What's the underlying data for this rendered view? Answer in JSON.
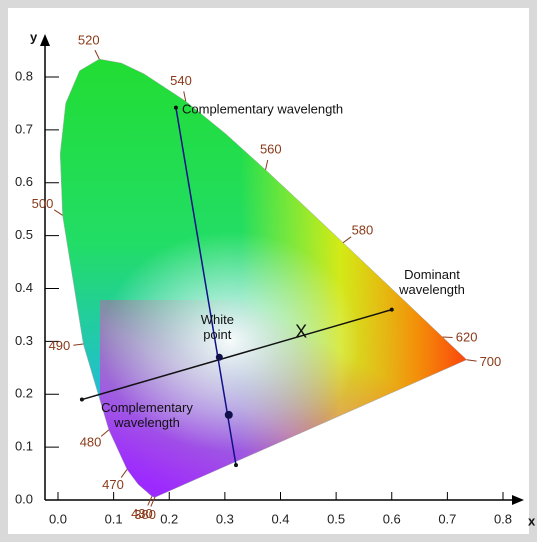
{
  "chart_data": {
    "type": "chromaticity",
    "x_label": "x",
    "y_label": "y",
    "xlim": [
      0,
      0.8
    ],
    "ylim": [
      0,
      0.8
    ],
    "xticks": [
      {
        "value": 0,
        "label": "0.0"
      },
      {
        "value": 0.1,
        "label": "0.1"
      },
      {
        "value": 0.2,
        "label": "0.2"
      },
      {
        "value": 0.3,
        "label": "0.3"
      },
      {
        "value": 0.4,
        "label": "0.4"
      },
      {
        "value": 0.5,
        "label": "0.5"
      },
      {
        "value": 0.6,
        "label": "0.6"
      },
      {
        "value": 0.7,
        "label": "0.7"
      },
      {
        "value": 0.8,
        "label": "0.8"
      }
    ],
    "yticks": [
      {
        "value": 0,
        "label": "0.0"
      },
      {
        "value": 0.1,
        "label": "0.1"
      },
      {
        "value": 0.2,
        "label": "0.2"
      },
      {
        "value": 0.3,
        "label": "0.3"
      },
      {
        "value": 0.4,
        "label": "0.4"
      },
      {
        "value": 0.5,
        "label": "0.5"
      },
      {
        "value": 0.6,
        "label": "0.6"
      },
      {
        "value": 0.7,
        "label": "0.7"
      },
      {
        "value": 0.8,
        "label": "0.8"
      }
    ],
    "locus": {
      "labels": [
        "380",
        "430",
        null,
        "470",
        "480",
        "490",
        "500",
        null,
        null,
        null,
        "520",
        null,
        null,
        "540",
        null,
        "560",
        null,
        "580",
        null,
        null,
        "620",
        "700"
      ],
      "x": [
        0.1741,
        0.1689,
        0.144,
        0.1241,
        0.0913,
        0.0454,
        0.0082,
        0.0039,
        0.0139,
        0.0389,
        0.0743,
        0.1142,
        0.1547,
        0.2296,
        0.3016,
        0.3731,
        0.4441,
        0.5125,
        0.5752,
        0.627,
        0.6915,
        0.7347
      ],
      "y": [
        0.005,
        0.0069,
        0.0297,
        0.0578,
        0.1327,
        0.295,
        0.5384,
        0.6548,
        0.7502,
        0.812,
        0.8338,
        0.8262,
        0.8059,
        0.7543,
        0.6923,
        0.6245,
        0.5547,
        0.4866,
        0.4242,
        0.3725,
        0.3083,
        0.2653
      ]
    },
    "dominant_line": {
      "x": [
        0.043,
        0.6
      ],
      "y": [
        0.19,
        0.36
      ]
    },
    "complementary_line": {
      "x": [
        0.212,
        0.32
      ],
      "y": [
        0.742,
        0.066
      ]
    },
    "white_point": {
      "label": "White point",
      "x": 0.29,
      "y": 0.27
    },
    "sample_point": {
      "label": "X",
      "x": 0.437,
      "y": 0.316
    },
    "complementary_point": {
      "x": 0.307,
      "y": 0.161
    },
    "annotations": {
      "complementary_top": "Complementary wavelength",
      "dominant": "Dominant wavelength",
      "complementary_bottom": "Complementary wavelength"
    }
  }
}
